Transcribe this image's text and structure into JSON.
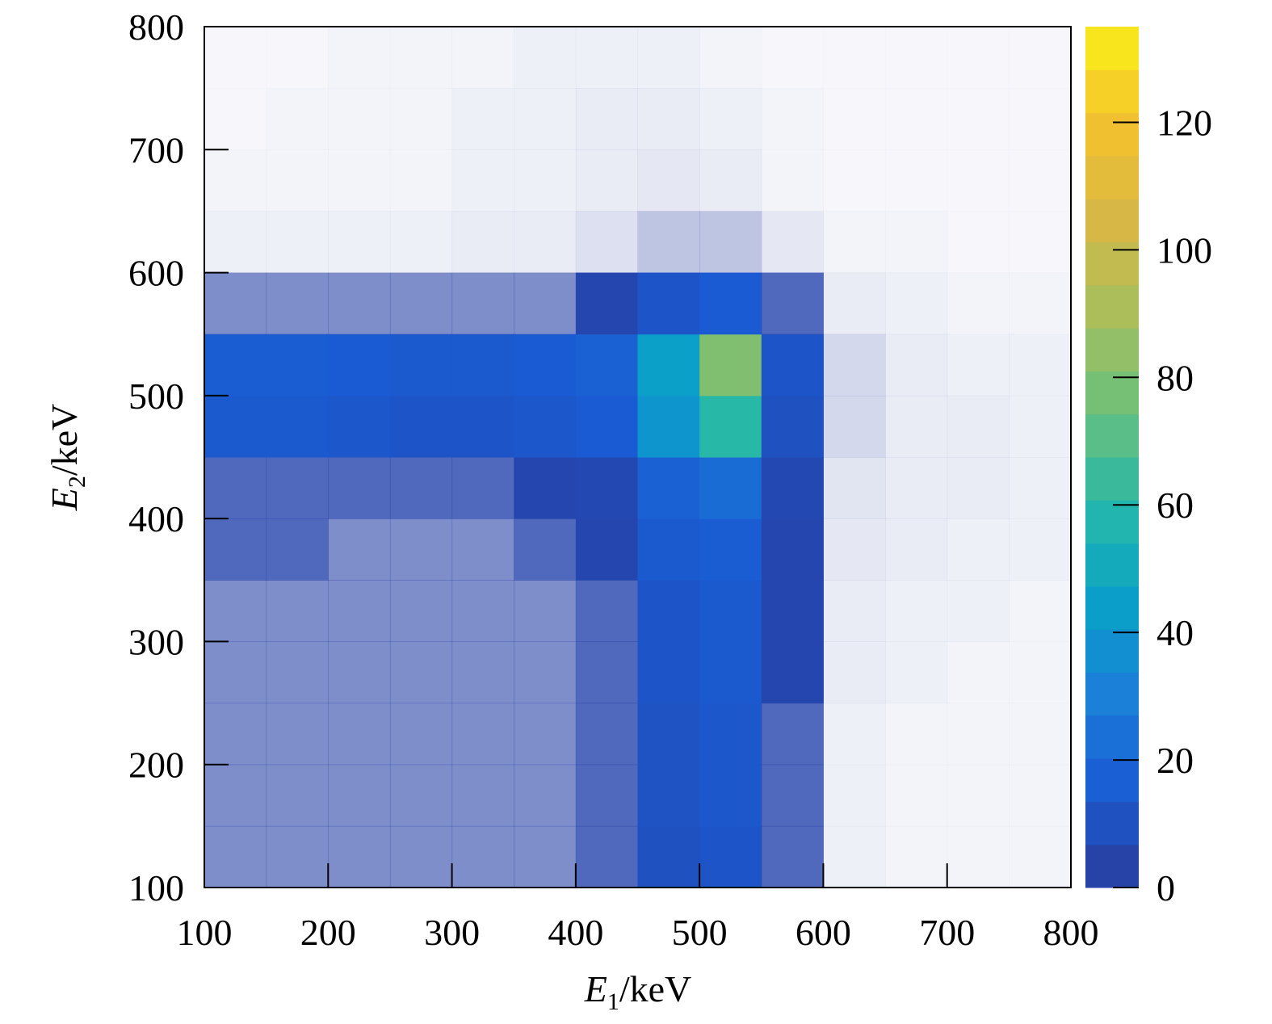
{
  "chart_data": {
    "type": "heatmap",
    "xlabel": {
      "symbol": "E",
      "subscript": "1",
      "unit": "/keV"
    },
    "ylabel": {
      "symbol": "E",
      "subscript": "2",
      "unit": "/keV"
    },
    "xbins": [
      100,
      150,
      200,
      250,
      300,
      350,
      400,
      450,
      500,
      550,
      600,
      650,
      700,
      750,
      800
    ],
    "ybins": [
      100,
      150,
      200,
      250,
      300,
      350,
      400,
      450,
      500,
      550,
      600,
      650,
      700,
      750,
      800
    ],
    "z": [
      [
        3,
        3,
        3,
        3,
        3,
        3,
        4,
        10,
        12,
        4,
        0.4,
        0.3,
        0.3,
        0.3
      ],
      [
        3,
        3,
        3,
        3,
        3,
        3,
        4,
        11,
        13,
        4,
        0.4,
        0.3,
        0.3,
        0.3
      ],
      [
        3,
        3,
        3,
        3,
        3,
        3,
        4,
        11,
        13,
        4,
        0.4,
        0.3,
        0.3,
        0.3
      ],
      [
        3,
        3,
        3,
        3,
        3,
        3,
        4,
        12,
        14,
        5,
        0.5,
        0.4,
        0.3,
        0.3
      ],
      [
        3,
        3,
        3,
        3,
        3,
        3,
        4,
        12,
        14,
        5,
        0.5,
        0.4,
        0.4,
        0.3
      ],
      [
        4,
        4,
        3,
        3,
        3,
        4,
        5,
        14,
        16,
        5,
        0.6,
        0.5,
        0.4,
        0.4
      ],
      [
        4,
        4,
        4,
        4,
        4,
        5,
        6,
        18,
        22,
        6,
        0.7,
        0.5,
        0.5,
        0.4
      ],
      [
        14,
        14,
        13,
        12,
        12,
        13,
        15,
        40,
        60,
        10,
        1,
        0.5,
        0.5,
        0.4
      ],
      [
        16,
        16,
        15,
        14,
        14,
        15,
        18,
        45,
        80,
        12,
        1,
        0.5,
        0.4,
        0.4
      ],
      [
        3,
        3,
        3,
        3,
        3,
        3,
        5,
        12,
        15,
        4,
        0.5,
        0.4,
        0.3,
        0.3
      ],
      [
        0.4,
        0.4,
        0.4,
        0.4,
        0.5,
        0.5,
        0.8,
        1.5,
        1.5,
        0.6,
        0.3,
        0.3,
        0.2,
        0.2
      ],
      [
        0.3,
        0.3,
        0.3,
        0.3,
        0.4,
        0.4,
        0.5,
        0.6,
        0.5,
        0.3,
        0.2,
        0.2,
        0.2,
        0.2
      ],
      [
        0.2,
        0.3,
        0.3,
        0.3,
        0.4,
        0.4,
        0.5,
        0.5,
        0.4,
        0.3,
        0.2,
        0.2,
        0.2,
        0.2
      ],
      [
        0.2,
        0.2,
        0.3,
        0.3,
        0.3,
        0.4,
        0.4,
        0.4,
        0.3,
        0.2,
        0.2,
        0.2,
        0.2,
        0.2
      ]
    ],
    "xlim": [
      100,
      800
    ],
    "ylim": [
      100,
      800
    ],
    "xticks": [
      100,
      200,
      300,
      400,
      500,
      600,
      700,
      800
    ],
    "yticks": [
      100,
      200,
      300,
      400,
      500,
      600,
      700,
      800
    ],
    "zlim": [
      0,
      135
    ],
    "zticks": [
      0,
      20,
      40,
      60,
      80,
      100,
      120
    ],
    "colorscale": [
      "#2b3c9c",
      "#1a5bd3",
      "#1a7fd8",
      "#0aa0c8",
      "#27b8a8",
      "#6cc07a",
      "#a8be5c",
      "#d8b845",
      "#f5c12d",
      "#f9f01a"
    ]
  }
}
